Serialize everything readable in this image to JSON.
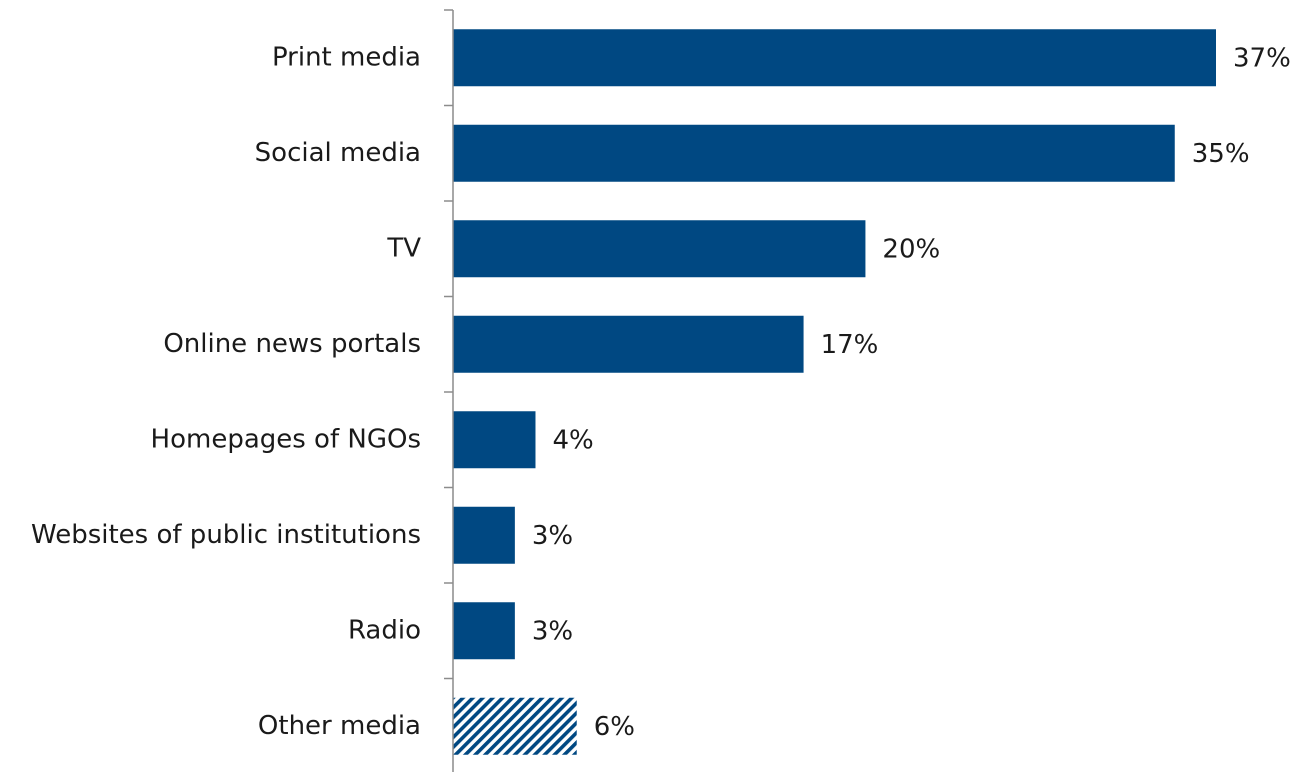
{
  "chart_data": {
    "type": "bar",
    "orientation": "horizontal",
    "categories": [
      "Print media",
      "Social media",
      "TV",
      "Online news portals",
      "Homepages of NGOs",
      "Websites of public institutions",
      "Radio",
      "Other media"
    ],
    "values": [
      37,
      35,
      20,
      17,
      4,
      3,
      3,
      6
    ],
    "value_labels": [
      "37%",
      "35%",
      "20%",
      "17%",
      "4%",
      "3%",
      "3%",
      "6%"
    ],
    "hatched": [
      false,
      false,
      false,
      false,
      false,
      false,
      false,
      true
    ],
    "title": "",
    "xlabel": "",
    "ylabel": "",
    "xlim": [
      0,
      40
    ],
    "grid": false,
    "legend": "none",
    "colors": {
      "bar": "#004882",
      "hatch_bg": "#ffffff",
      "axis": "#8c8c8c"
    }
  }
}
